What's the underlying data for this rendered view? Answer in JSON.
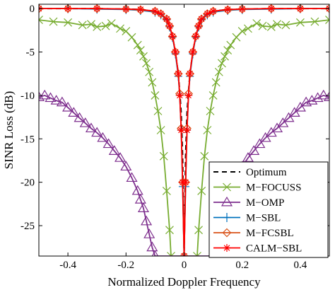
{
  "chart_data": {
    "type": "line",
    "title": "",
    "xlabel": "Normalized Doppler Frequency",
    "ylabel": "SINR Loss (dB)",
    "xlim": [
      -0.5,
      0.5
    ],
    "ylim": [
      -28.5,
      0.5
    ],
    "xticks": [
      -0.4,
      -0.2,
      0,
      0.2,
      0.4
    ],
    "xtick_labels": [
      "-0.4",
      "-0.2",
      "0",
      "0.2",
      "0.4"
    ],
    "yticks": [
      0,
      -5,
      -10,
      -15,
      -20,
      -25
    ],
    "ytick_labels": [
      "0",
      "-5",
      "-10",
      "-15",
      "-20",
      "-25"
    ],
    "grid": false,
    "legend_position": "bottom-right",
    "series": [
      {
        "name": "Optimum",
        "color": "#000000",
        "style": "dashed",
        "marker": "none",
        "x": [
          -0.5,
          -0.3,
          -0.2,
          -0.15,
          -0.1,
          -0.08,
          -0.06,
          -0.05,
          -0.04,
          -0.03,
          -0.02,
          -0.015,
          -0.01,
          -0.005,
          0,
          0.005,
          0.01,
          0.015,
          0.02,
          0.03,
          0.04,
          0.05,
          0.06,
          0.08,
          0.1,
          0.15,
          0.2,
          0.3,
          0.5
        ],
        "y": [
          0,
          0,
          -0.05,
          -0.1,
          -0.3,
          -0.6,
          -1.2,
          -2,
          -3.2,
          -5,
          -7.5,
          -9.5,
          -12,
          -17,
          -28.5,
          -17,
          -12,
          -9.5,
          -7.5,
          -5,
          -3.2,
          -2,
          -1.2,
          -0.6,
          -0.3,
          -0.1,
          -0.05,
          0,
          0
        ]
      },
      {
        "name": "M−FOCUSS",
        "color": "#77ac30",
        "style": "solid",
        "marker": "x",
        "x": [
          -0.5,
          -0.45,
          -0.4,
          -0.35,
          -0.32,
          -0.3,
          -0.27,
          -0.25,
          -0.22,
          -0.2,
          -0.18,
          -0.16,
          -0.15,
          -0.14,
          -0.13,
          -0.12,
          -0.11,
          -0.1,
          -0.09,
          -0.08,
          -0.07,
          -0.06,
          -0.05,
          -0.045,
          0.045,
          0.05,
          0.06,
          0.07,
          0.08,
          0.09,
          0.1,
          0.11,
          0.12,
          0.13,
          0.14,
          0.15,
          0.16,
          0.18,
          0.2,
          0.22,
          0.25,
          0.27,
          0.3,
          0.32,
          0.35,
          0.4,
          0.45,
          0.5
        ],
        "y": [
          -1.3,
          -1.5,
          -1.6,
          -1.9,
          -1.8,
          -2.1,
          -2.0,
          -1.7,
          -2.3,
          -2.6,
          -3.3,
          -4.2,
          -4.8,
          -5.5,
          -6.3,
          -7.3,
          -8.5,
          -10.0,
          -11.8,
          -14.0,
          -17.0,
          -21.0,
          -25.5,
          -28.5,
          -28.5,
          -25.5,
          -21.0,
          -17.0,
          -14.0,
          -11.8,
          -10.0,
          -8.5,
          -7.3,
          -6.3,
          -5.5,
          -4.8,
          -4.2,
          -3.3,
          -2.6,
          -2.3,
          -1.7,
          -2.0,
          -2.1,
          -1.8,
          -1.9,
          -1.6,
          -1.5,
          -1.3
        ]
      },
      {
        "name": "M−OMP",
        "color": "#7e2f8e",
        "style": "solid",
        "marker": "triangle",
        "x": [
          -0.5,
          -0.48,
          -0.46,
          -0.44,
          -0.42,
          -0.4,
          -0.38,
          -0.36,
          -0.34,
          -0.32,
          -0.3,
          -0.28,
          -0.26,
          -0.24,
          -0.22,
          -0.2,
          -0.18,
          -0.16,
          -0.15,
          -0.14,
          -0.13,
          -0.12,
          -0.11,
          -0.1,
          0.1,
          0.11,
          0.12,
          0.13,
          0.14,
          0.15,
          0.16,
          0.18,
          0.2,
          0.22,
          0.24,
          0.26,
          0.28,
          0.3,
          0.32,
          0.34,
          0.36,
          0.38,
          0.4,
          0.42,
          0.44,
          0.46,
          0.48,
          0.5
        ],
        "y": [
          -10.2,
          -10.0,
          -10.3,
          -10.6,
          -10.8,
          -11.4,
          -12.0,
          -12.6,
          -13.2,
          -13.8,
          -14.3,
          -14.9,
          -15.6,
          -16.4,
          -17.2,
          -18.2,
          -19.5,
          -21.0,
          -22.0,
          -23.0,
          -24.5,
          -26.0,
          -27.5,
          -28.5,
          -28.5,
          -27.5,
          -26.0,
          -24.5,
          -23.0,
          -22.0,
          -21.0,
          -19.5,
          -18.2,
          -17.2,
          -16.4,
          -15.6,
          -14.9,
          -14.3,
          -13.8,
          -13.2,
          -12.6,
          -12.0,
          -11.4,
          -10.8,
          -10.6,
          -10.3,
          -10.0,
          -10.2
        ]
      },
      {
        "name": "M−SBL",
        "color": "#0072bd",
        "style": "solid",
        "marker": "plus",
        "x": [
          -0.5,
          -0.4,
          -0.3,
          -0.2,
          -0.15,
          -0.1,
          -0.08,
          -0.06,
          -0.05,
          -0.04,
          -0.03,
          -0.02,
          -0.015,
          -0.01,
          -0.005,
          0,
          0.005,
          0.01,
          0.015,
          0.02,
          0.03,
          0.04,
          0.05,
          0.06,
          0.08,
          0.1,
          0.15,
          0.2,
          0.3,
          0.4,
          0.5
        ],
        "y": [
          0,
          0,
          -0.05,
          -0.1,
          -0.2,
          -0.4,
          -0.7,
          -1.3,
          -2.1,
          -3.3,
          -5.2,
          -7.8,
          -10.0,
          -14.0,
          -20.5,
          -28.5,
          -20.5,
          -14.0,
          -10.0,
          -7.8,
          -5.2,
          -3.3,
          -2.1,
          -1.3,
          -0.7,
          -0.4,
          -0.2,
          -0.1,
          -0.05,
          0,
          0
        ]
      },
      {
        "name": "M−FCSBL",
        "color": "#d95319",
        "style": "solid",
        "marker": "diamond",
        "x": [
          -0.5,
          -0.4,
          -0.3,
          -0.2,
          -0.15,
          -0.1,
          -0.08,
          -0.06,
          -0.05,
          -0.04,
          -0.03,
          -0.02,
          -0.015,
          -0.01,
          -0.005,
          0,
          0.005,
          0.01,
          0.015,
          0.02,
          0.03,
          0.04,
          0.05,
          0.06,
          0.08,
          0.1,
          0.15,
          0.2,
          0.3,
          0.4,
          0.5
        ],
        "y": [
          0,
          0,
          0,
          -0.05,
          -0.15,
          -0.3,
          -0.6,
          -1.2,
          -2.0,
          -3.2,
          -5.0,
          -7.5,
          -9.8,
          -13.8,
          -20.0,
          -28.5,
          -20.0,
          -13.8,
          -9.8,
          -7.5,
          -5.0,
          -3.2,
          -2.0,
          -1.2,
          -0.6,
          -0.3,
          -0.15,
          -0.05,
          0,
          0,
          0
        ]
      },
      {
        "name": "CALM−SBL",
        "color": "#ff0000",
        "style": "solid",
        "marker": "asterisk",
        "x": [
          -0.5,
          -0.4,
          -0.3,
          -0.2,
          -0.15,
          -0.1,
          -0.08,
          -0.06,
          -0.05,
          -0.04,
          -0.03,
          -0.02,
          -0.015,
          -0.01,
          -0.005,
          0,
          0.005,
          0.01,
          0.015,
          0.02,
          0.03,
          0.04,
          0.05,
          0.06,
          0.08,
          0.1,
          0.15,
          0.2,
          0.3,
          0.4,
          0.5
        ],
        "y": [
          0,
          0,
          0,
          -0.05,
          -0.1,
          -0.3,
          -0.6,
          -1.2,
          -2.0,
          -3.2,
          -5.0,
          -7.5,
          -10.0,
          -14.0,
          -20.0,
          -28.5,
          -20.0,
          -14.0,
          -10.0,
          -7.5,
          -5.0,
          -3.2,
          -2.0,
          -1.2,
          -0.6,
          -0.3,
          -0.1,
          -0.05,
          0,
          0,
          0
        ]
      }
    ]
  }
}
